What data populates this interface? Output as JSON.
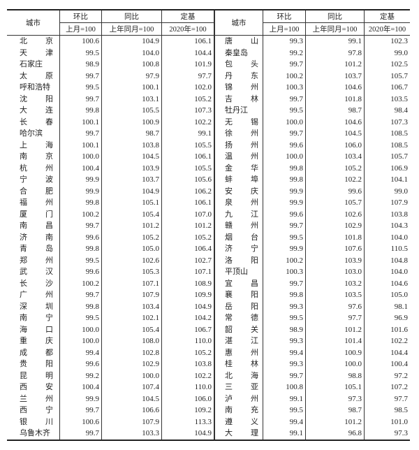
{
  "header": {
    "city": "城市",
    "mom": "环比",
    "mom_base": "上月=100",
    "yoy": "同比",
    "yoy_base": "上年同月=100",
    "fixed": "定基",
    "fixed_base": "2020年=100"
  },
  "rows": [
    {
      "l": [
        "北京",
        "100.6",
        "104.9",
        "106.1"
      ],
      "r": [
        "唐山",
        "99.3",
        "99.1",
        "102.3"
      ]
    },
    {
      "l": [
        "天津",
        "99.5",
        "104.0",
        "104.4"
      ],
      "r": [
        "秦皇岛",
        "99.2",
        "97.8",
        "99.0"
      ]
    },
    {
      "l": [
        "石家庄",
        "98.9",
        "100.8",
        "101.9"
      ],
      "r": [
        "包头",
        "99.7",
        "101.2",
        "102.5"
      ]
    },
    {
      "l": [
        "太原",
        "99.7",
        "97.9",
        "97.7"
      ],
      "r": [
        "丹东",
        "100.2",
        "103.7",
        "105.7"
      ]
    },
    {
      "l": [
        "呼和浩特",
        "99.5",
        "100.1",
        "102.0"
      ],
      "r": [
        "锦州",
        "100.3",
        "104.6",
        "106.7"
      ]
    },
    {
      "l": [
        "沈阳",
        "99.7",
        "103.1",
        "105.2"
      ],
      "r": [
        "吉林",
        "99.7",
        "101.8",
        "103.5"
      ]
    },
    {
      "l": [
        "大连",
        "99.8",
        "105.5",
        "107.3"
      ],
      "r": [
        "牡丹江",
        "99.5",
        "98.7",
        "98.4"
      ]
    },
    {
      "l": [
        "长春",
        "100.1",
        "100.9",
        "102.2"
      ],
      "r": [
        "无锡",
        "100.0",
        "104.6",
        "107.3"
      ]
    },
    {
      "l": [
        "哈尔滨",
        "99.7",
        "98.7",
        "99.1"
      ],
      "r": [
        "徐州",
        "99.7",
        "104.5",
        "108.5"
      ]
    },
    {
      "l": [
        "上海",
        "100.1",
        "103.8",
        "105.5"
      ],
      "r": [
        "扬州",
        "99.6",
        "106.0",
        "108.5"
      ]
    },
    {
      "l": [
        "南京",
        "100.0",
        "104.5",
        "106.1"
      ],
      "r": [
        "温州",
        "100.0",
        "103.4",
        "105.7"
      ]
    },
    {
      "l": [
        "杭州",
        "100.4",
        "103.9",
        "105.5"
      ],
      "r": [
        "金华",
        "99.8",
        "105.2",
        "106.9"
      ]
    },
    {
      "l": [
        "宁波",
        "99.9",
        "103.7",
        "105.6"
      ],
      "r": [
        "蚌埠",
        "99.8",
        "102.2",
        "104.1"
      ]
    },
    {
      "l": [
        "合肥",
        "99.9",
        "104.9",
        "106.2"
      ],
      "r": [
        "安庆",
        "99.9",
        "99.6",
        "99.0"
      ]
    },
    {
      "l": [
        "福州",
        "99.8",
        "105.1",
        "106.1"
      ],
      "r": [
        "泉州",
        "99.9",
        "105.7",
        "107.9"
      ]
    },
    {
      "l": [
        "厦门",
        "100.2",
        "105.4",
        "107.0"
      ],
      "r": [
        "九江",
        "99.6",
        "102.6",
        "103.8"
      ]
    },
    {
      "l": [
        "南昌",
        "99.7",
        "101.2",
        "101.2"
      ],
      "r": [
        "赣州",
        "99.7",
        "102.9",
        "104.3"
      ]
    },
    {
      "l": [
        "济南",
        "99.6",
        "105.2",
        "105.2"
      ],
      "r": [
        "烟台",
        "99.5",
        "101.8",
        "104.0"
      ]
    },
    {
      "l": [
        "青岛",
        "99.8",
        "105.0",
        "106.4"
      ],
      "r": [
        "济宁",
        "99.9",
        "107.6",
        "110.5"
      ]
    },
    {
      "l": [
        "郑州",
        "99.5",
        "102.6",
        "102.7"
      ],
      "r": [
        "洛阳",
        "100.2",
        "103.9",
        "104.8"
      ]
    },
    {
      "l": [
        "武汉",
        "99.6",
        "105.3",
        "107.1"
      ],
      "r": [
        "平顶山",
        "100.3",
        "103.0",
        "104.0"
      ]
    },
    {
      "l": [
        "长沙",
        "100.2",
        "107.1",
        "108.9"
      ],
      "r": [
        "宜昌",
        "99.7",
        "103.2",
        "104.6"
      ]
    },
    {
      "l": [
        "广州",
        "99.7",
        "107.9",
        "109.9"
      ],
      "r": [
        "襄阳",
        "99.8",
        "103.5",
        "105.0"
      ]
    },
    {
      "l": [
        "深圳",
        "99.8",
        "103.4",
        "104.9"
      ],
      "r": [
        "岳阳",
        "99.3",
        "97.6",
        "98.1"
      ]
    },
    {
      "l": [
        "南宁",
        "99.5",
        "102.1",
        "104.2"
      ],
      "r": [
        "常德",
        "99.5",
        "97.7",
        "96.9"
      ]
    },
    {
      "l": [
        "海口",
        "100.0",
        "105.4",
        "106.7"
      ],
      "r": [
        "韶关",
        "98.9",
        "101.2",
        "101.6"
      ]
    },
    {
      "l": [
        "重庆",
        "100.0",
        "108.0",
        "110.0"
      ],
      "r": [
        "湛江",
        "99.3",
        "101.4",
        "102.2"
      ]
    },
    {
      "l": [
        "成都",
        "99.4",
        "102.8",
        "105.2"
      ],
      "r": [
        "惠州",
        "99.4",
        "100.9",
        "104.4"
      ]
    },
    {
      "l": [
        "贵阳",
        "99.6",
        "102.9",
        "103.8"
      ],
      "r": [
        "桂林",
        "99.3",
        "100.0",
        "100.4"
      ]
    },
    {
      "l": [
        "昆明",
        "99.2",
        "100.0",
        "102.2"
      ],
      "r": [
        "北海",
        "99.7",
        "98.8",
        "97.2"
      ]
    },
    {
      "l": [
        "西安",
        "100.4",
        "107.4",
        "110.0"
      ],
      "r": [
        "三亚",
        "100.8",
        "105.1",
        "107.2"
      ]
    },
    {
      "l": [
        "兰州",
        "99.9",
        "104.5",
        "106.0"
      ],
      "r": [
        "泸州",
        "99.1",
        "97.3",
        "97.7"
      ]
    },
    {
      "l": [
        "西宁",
        "99.7",
        "106.6",
        "109.2"
      ],
      "r": [
        "南充",
        "99.5",
        "98.7",
        "98.5"
      ]
    },
    {
      "l": [
        "银川",
        "100.6",
        "107.9",
        "113.3"
      ],
      "r": [
        "遵义",
        "99.4",
        "101.2",
        "101.0"
      ]
    },
    {
      "l": [
        "乌鲁木齐",
        "99.7",
        "103.3",
        "104.9"
      ],
      "r": [
        "大理",
        "99.1",
        "96.8",
        "97.3"
      ]
    }
  ]
}
